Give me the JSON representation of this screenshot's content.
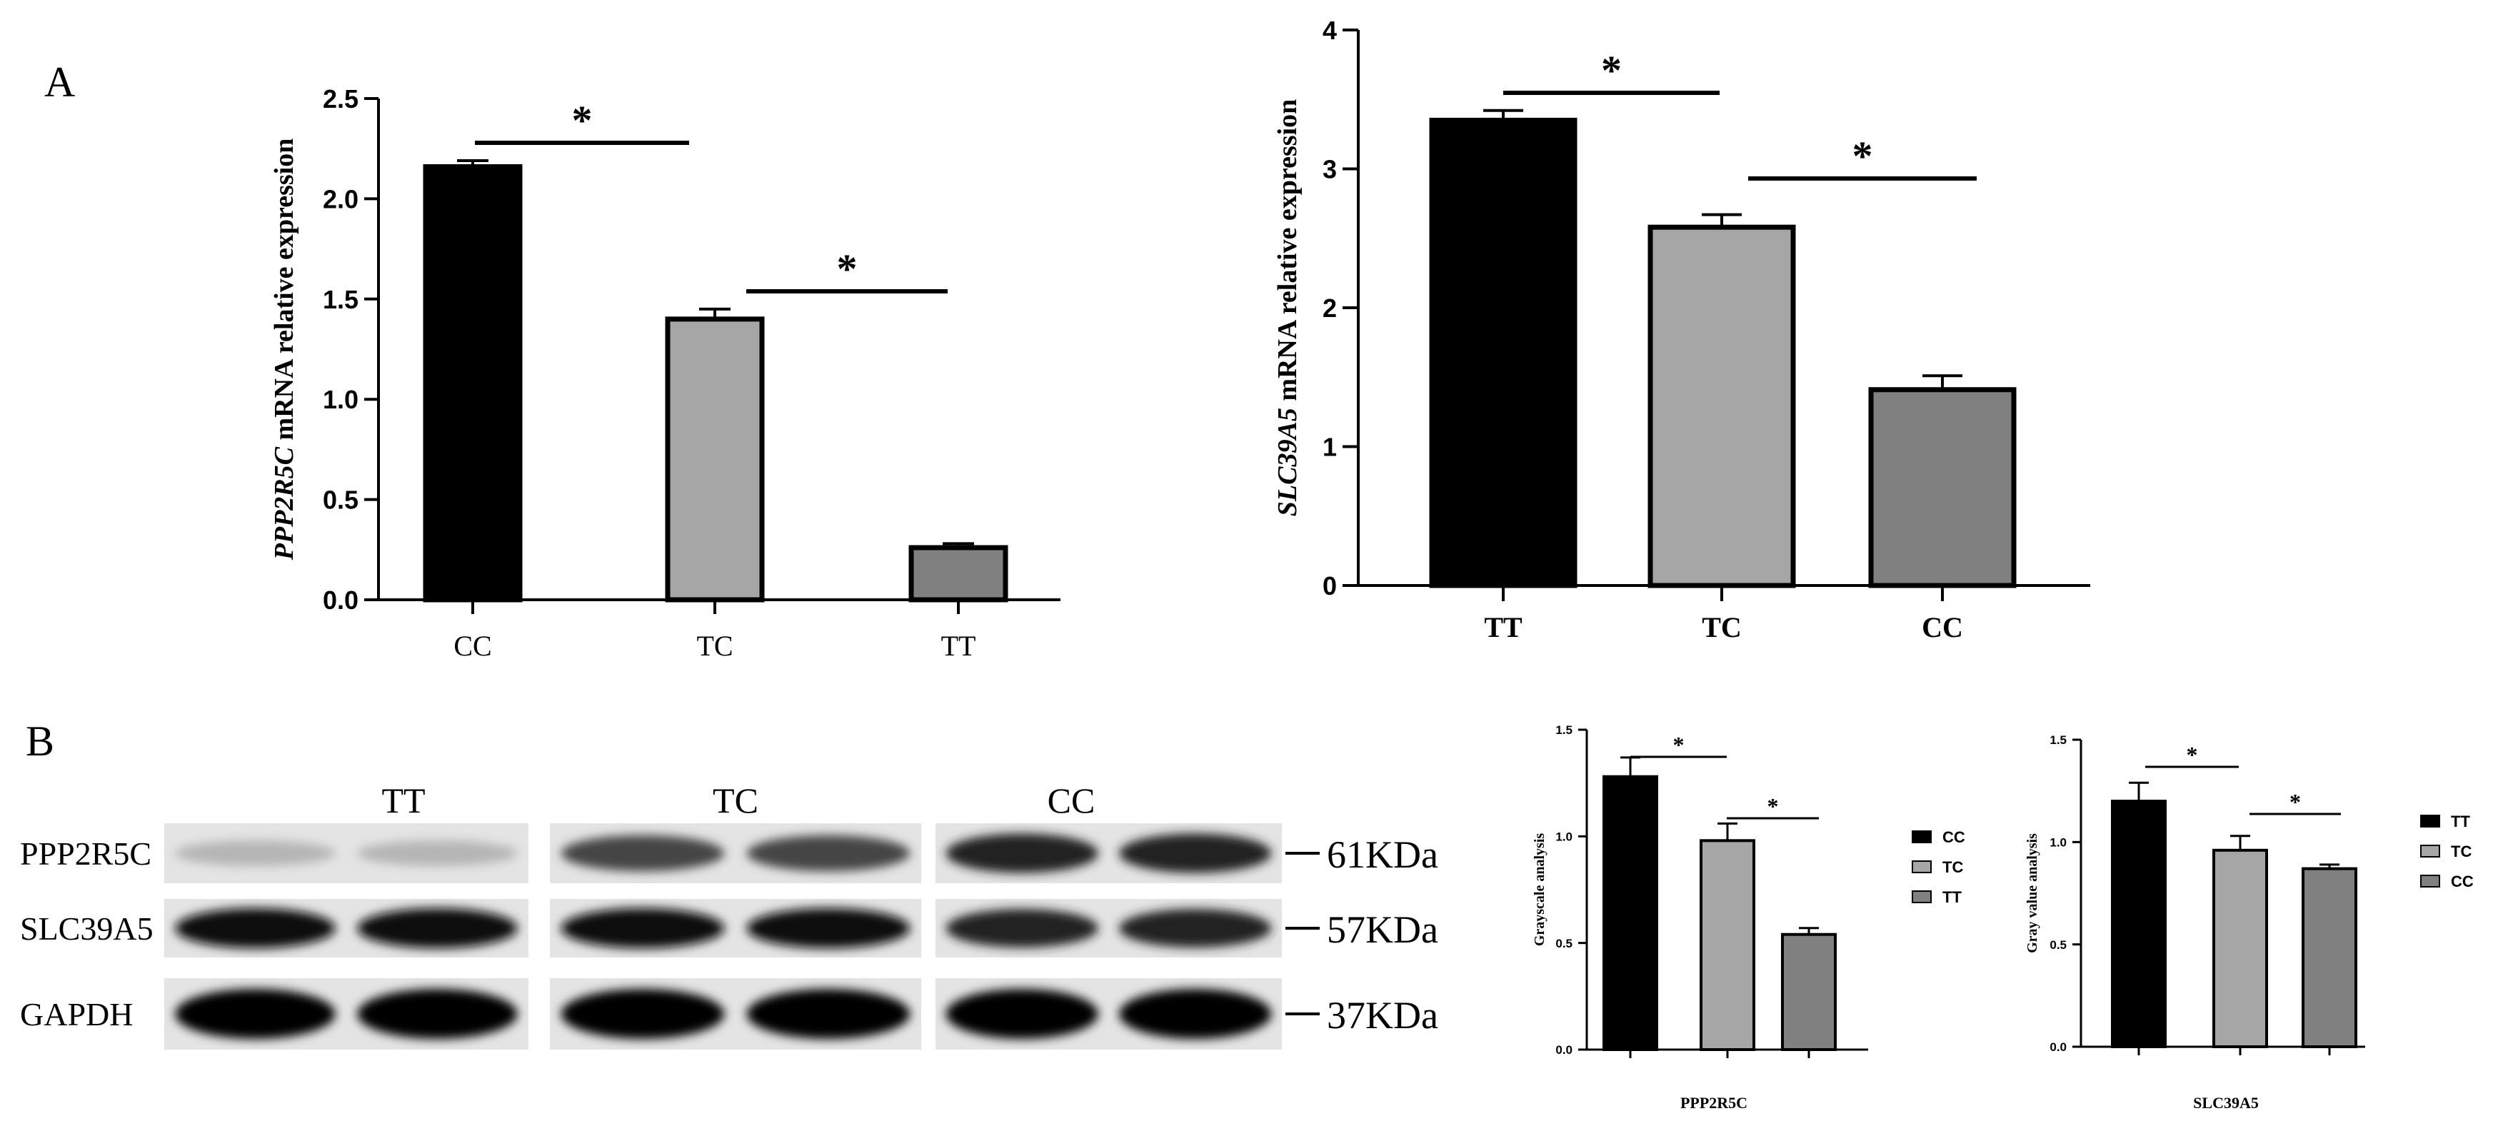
{
  "panel_labels": {
    "a": "A",
    "b": "B"
  },
  "chart_data": [
    {
      "id": "A1",
      "type": "bar",
      "ylabel_gene": "PPP2R5C",
      "ylabel_rest": " mRNA relative expression",
      "categories": [
        "CC",
        "TC",
        "TT"
      ],
      "values": [
        2.16,
        1.4,
        0.26
      ],
      "errors": [
        0.03,
        0.05,
        0.02
      ],
      "colors": [
        "#000000",
        "#a6a6a6",
        "#808080"
      ],
      "ylim": [
        0,
        2.5
      ],
      "yticks": [
        0,
        0.5,
        1.0,
        1.5,
        2.0,
        2.5
      ],
      "ytick_labels": [
        "0.0",
        "0.5",
        "1.0",
        "1.5",
        "2.0",
        "2.5"
      ],
      "significance": [
        {
          "from": 0,
          "to": 1,
          "label": "*"
        },
        {
          "from": 1,
          "to": 2,
          "label": "*"
        }
      ]
    },
    {
      "id": "A2",
      "type": "bar",
      "ylabel_gene": "SLC39A5",
      "ylabel_rest": " mRNA relative expression",
      "categories": [
        "TT",
        "TC",
        "CC"
      ],
      "values": [
        3.35,
        2.58,
        1.41
      ],
      "errors": [
        0.07,
        0.09,
        0.1
      ],
      "colors": [
        "#000000",
        "#a6a6a6",
        "#808080"
      ],
      "ylim": [
        0,
        4
      ],
      "yticks": [
        0,
        1,
        2,
        3,
        4
      ],
      "ytick_labels": [
        "0",
        "1",
        "2",
        "3",
        "4"
      ],
      "significance": [
        {
          "from": 0,
          "to": 1,
          "label": "*"
        },
        {
          "from": 1,
          "to": 2,
          "label": "*"
        }
      ]
    },
    {
      "id": "B1",
      "type": "bar",
      "ylabel": "Grayscale analysis",
      "xlabel": "PPP2R5C",
      "categories": [
        "CC",
        "TC",
        "TT"
      ],
      "values": [
        1.28,
        0.98,
        0.54
      ],
      "errors": [
        0.09,
        0.08,
        0.03
      ],
      "colors": [
        "#000000",
        "#a6a6a6",
        "#808080"
      ],
      "ylim": [
        0,
        1.5
      ],
      "yticks": [
        0,
        0.5,
        1.0,
        1.5
      ],
      "ytick_labels": [
        "0.0",
        "0.5",
        "1.0",
        "1.5"
      ],
      "legend": [
        "CC",
        "TC",
        "TT"
      ],
      "legend_position": "right",
      "significance": [
        {
          "from": 0,
          "to": 1,
          "label": "*"
        },
        {
          "from": 1,
          "to": 2,
          "label": "*"
        }
      ]
    },
    {
      "id": "B2",
      "type": "bar",
      "ylabel": "Gray value analysis",
      "xlabel": "SLC39A5",
      "categories": [
        "TT",
        "TC",
        "CC"
      ],
      "values": [
        1.2,
        0.96,
        0.87
      ],
      "errors": [
        0.09,
        0.07,
        0.02
      ],
      "colors": [
        "#000000",
        "#a6a6a6",
        "#808080"
      ],
      "ylim": [
        0,
        1.5
      ],
      "yticks": [
        0,
        0.5,
        1.0,
        1.5
      ],
      "ytick_labels": [
        "0.0",
        "0.5",
        "1.0",
        "1.5"
      ],
      "legend": [
        "TT",
        "TC",
        "CC"
      ],
      "legend_position": "right",
      "significance": [
        {
          "from": 0,
          "to": 1,
          "label": "*"
        },
        {
          "from": 1,
          "to": 2,
          "label": "*"
        }
      ]
    }
  ],
  "western_blot": {
    "lanes": [
      "TT",
      "TC",
      "CC"
    ],
    "proteins": [
      {
        "name": "PPP2R5C",
        "size": "61KDa",
        "intensity": [
          0.22,
          0.72,
          0.88
        ]
      },
      {
        "name": "SLC39A5",
        "size": "57KDa",
        "intensity": [
          0.95,
          0.95,
          0.88
        ]
      },
      {
        "name": "GAPDH",
        "size": "37KDa",
        "intensity": [
          1.0,
          1.0,
          1.0
        ]
      }
    ]
  }
}
